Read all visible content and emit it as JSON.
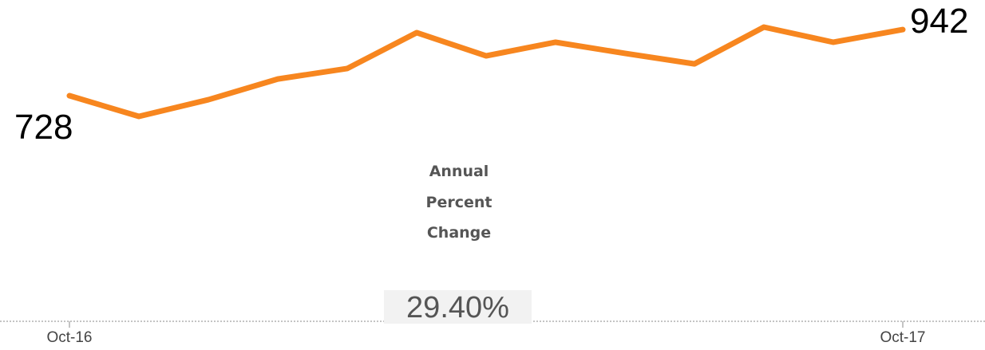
{
  "chart_data": {
    "type": "line",
    "categories": [
      "Oct-16",
      null,
      null,
      null,
      null,
      null,
      null,
      null,
      null,
      null,
      null,
      null,
      "Oct-17"
    ],
    "values": [
      728,
      661,
      715,
      782,
      816,
      932,
      857,
      901,
      865,
      831,
      950,
      901,
      942
    ],
    "color": "#f7861f",
    "annotation_title": "Annual Percent Change",
    "annotation_value": "29.40%"
  }
}
